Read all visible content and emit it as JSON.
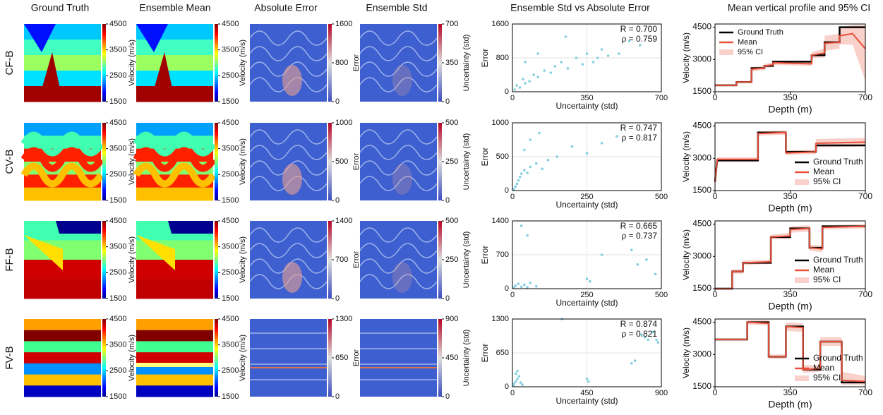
{
  "column_titles": [
    "Ground Truth",
    "Ensemble Mean",
    "Absolute Error",
    "Ensemble Std",
    "Ensemble Std vs Absolute Error",
    "Mean vertical profile and 95% CI"
  ],
  "row_labels": [
    "CF-B",
    "CV-B",
    "FF-B",
    "FV-B"
  ],
  "chart_data": [
    {
      "type": "heatmap",
      "colormap": "jet",
      "colorbar_label": "Velocity (m/s)",
      "clim": [
        1500,
        4500
      ],
      "cticks": [
        1500,
        2500,
        3500,
        4500
      ]
    },
    {
      "type": "heatmap",
      "colormap": "jet",
      "colorbar_label": "Velocity (m/s)",
      "clim": [
        1500,
        4500
      ],
      "cticks": [
        1500,
        2500,
        3500,
        4500
      ]
    },
    {
      "type": "heatmap",
      "colormap": "coolwarm",
      "colorbar_label": "Error",
      "clim": [
        0,
        1600
      ],
      "cticks": [
        0,
        800,
        1600
      ]
    },
    {
      "type": "heatmap",
      "colormap": "coolwarm",
      "colorbar_label": "Uncertainty (std)",
      "clim": [
        0,
        700
      ],
      "cticks": [
        0,
        350,
        700
      ]
    },
    {
      "type": "scatter",
      "xlabel": "Uncertainty (std)",
      "ylabel": "Error",
      "annotations": [
        "R = 0.700",
        "ρ = 0.759"
      ],
      "color": "#5bbfd6",
      "grid": true,
      "xlim": [
        0,
        700
      ],
      "xticks": [
        0,
        350,
        700
      ],
      "ylim": [
        0,
        1600
      ],
      "yticks": [
        0,
        800,
        1600
      ],
      "x": [
        10,
        20,
        35,
        50,
        60,
        80,
        100,
        120,
        150,
        180,
        200,
        230,
        260,
        300,
        330,
        350,
        380,
        400,
        420,
        450,
        500,
        550,
        600,
        250,
        120,
        60
      ],
      "values": [
        50,
        150,
        100,
        300,
        200,
        250,
        400,
        350,
        500,
        450,
        600,
        700,
        550,
        800,
        650,
        900,
        700,
        800,
        1000,
        850,
        900,
        1200,
        1100,
        1300,
        900,
        700
      ]
    },
    {
      "type": "line",
      "xlabel": "Depth (m)",
      "ylabel": "Velocity (m/s)",
      "legend": "upper left",
      "xlim": [
        0,
        700
      ],
      "xticks": [
        0,
        350,
        700
      ],
      "ylim": [
        1500,
        4650
      ],
      "yticks": [
        1500,
        3000,
        4500
      ],
      "x": [
        0,
        100,
        100,
        170,
        170,
        230,
        230,
        270,
        270,
        450,
        450,
        510,
        510,
        580,
        580,
        640,
        700
      ],
      "series": [
        {
          "name": "Ground Truth",
          "color": "#000000",
          "values": [
            1800,
            1800,
            1950,
            1950,
            2600,
            2600,
            2700,
            2700,
            2900,
            2900,
            3200,
            3200,
            3800,
            3800,
            4500,
            4500,
            4500
          ]
        },
        {
          "name": "Mean",
          "color": "#e8503a",
          "values": [
            1800,
            1800,
            1950,
            1950,
            2550,
            2600,
            2700,
            2750,
            2850,
            2800,
            3200,
            3300,
            3750,
            3800,
            4100,
            4200,
            3500
          ]
        }
      ],
      "band": {
        "name": "95% CI",
        "color": "#f6b3a6",
        "lower": [
          1750,
          1750,
          1900,
          1900,
          2450,
          2500,
          2600,
          2650,
          2750,
          2700,
          3050,
          3100,
          3400,
          3500,
          3700,
          3700,
          2000
        ],
        "upper": [
          1850,
          1850,
          2000,
          2000,
          2650,
          2700,
          2800,
          2850,
          2950,
          2950,
          3350,
          3500,
          4100,
          4200,
          4500,
          4600,
          4600
        ]
      }
    },
    {
      "type": "heatmap",
      "colormap": "jet",
      "colorbar_label": "Velocity (m/s)",
      "clim": [
        1500,
        4500
      ],
      "cticks": [
        1500,
        2500,
        3500,
        4500
      ]
    },
    {
      "type": "heatmap",
      "colormap": "jet",
      "colorbar_label": "Velocity (m/s)",
      "clim": [
        1500,
        4500
      ],
      "cticks": [
        1500,
        2500,
        3500,
        4500
      ]
    },
    {
      "type": "heatmap",
      "colormap": "coolwarm",
      "colorbar_label": "Error",
      "clim": [
        0,
        1000
      ],
      "cticks": [
        0,
        500,
        1000
      ]
    },
    {
      "type": "heatmap",
      "colormap": "coolwarm",
      "colorbar_label": "Uncertainty (std)",
      "clim": [
        0,
        500
      ],
      "cticks": [
        0,
        250,
        500
      ]
    },
    {
      "type": "scatter",
      "xlabel": "Uncertainty (std)",
      "ylabel": "Error",
      "annotations": [
        "R = 0.747",
        "ρ = 0.817"
      ],
      "color": "#5bbfd6",
      "grid": true,
      "xlim": [
        0,
        500
      ],
      "xticks": [
        0,
        250,
        500
      ],
      "ylim": [
        0,
        1000
      ],
      "yticks": [
        0,
        500,
        1000
      ],
      "x": [
        5,
        10,
        15,
        20,
        25,
        30,
        40,
        50,
        60,
        80,
        100,
        120,
        150,
        200,
        250,
        300,
        350,
        60,
        40,
        90
      ],
      "values": [
        20,
        60,
        100,
        150,
        200,
        250,
        300,
        260,
        350,
        400,
        320,
        450,
        500,
        650,
        550,
        700,
        800,
        750,
        600,
        850
      ]
    },
    {
      "type": "line",
      "xlabel": "Depth (m)",
      "ylabel": "Velocity (m/s)",
      "legend": "lower right",
      "xlim": [
        0,
        700
      ],
      "xticks": [
        0,
        350,
        700
      ],
      "ylim": [
        1500,
        4650
      ],
      "yticks": [
        1500,
        3000,
        4500
      ],
      "x": [
        0,
        10,
        10,
        200,
        200,
        330,
        330,
        470,
        470,
        700
      ],
      "series": [
        {
          "name": "Ground Truth",
          "color": "#000000",
          "values": [
            1900,
            2900,
            2900,
            2900,
            4200,
            4200,
            3300,
            3300,
            3600,
            3600
          ]
        },
        {
          "name": "Mean",
          "color": "#e8503a",
          "values": [
            1900,
            2900,
            2950,
            2950,
            4150,
            4200,
            3250,
            3300,
            3700,
            3750
          ]
        }
      ],
      "band": {
        "name": "95% CI",
        "color": "#f6b3a6",
        "lower": [
          1850,
          2800,
          2850,
          2850,
          4050,
          4100,
          3150,
          3200,
          3500,
          3550
        ],
        "upper": [
          1950,
          3000,
          3050,
          3050,
          4250,
          4300,
          3350,
          3400,
          3900,
          3950
        ]
      }
    },
    {
      "type": "heatmap",
      "colormap": "jet",
      "colorbar_label": "Velocity (m/s)",
      "clim": [
        1500,
        4500
      ],
      "cticks": [
        1500,
        2500,
        3500,
        4500
      ]
    },
    {
      "type": "heatmap",
      "colormap": "jet",
      "colorbar_label": "Velocity (m/s)",
      "clim": [
        1500,
        4500
      ],
      "cticks": [
        1500,
        2500,
        3500,
        4500
      ]
    },
    {
      "type": "heatmap",
      "colormap": "coolwarm",
      "colorbar_label": "Error",
      "clim": [
        0,
        1400
      ],
      "cticks": [
        0,
        700,
        1400
      ]
    },
    {
      "type": "heatmap",
      "colormap": "coolwarm",
      "colorbar_label": "Uncertainty (std)",
      "clim": [
        0,
        500
      ],
      "cticks": [
        0,
        250,
        500
      ]
    },
    {
      "type": "scatter",
      "xlabel": "Uncertainty (std)",
      "ylabel": "Error",
      "annotations": [
        "R = 0.665",
        "ρ = 0.737"
      ],
      "color": "#5bbfd6",
      "grid": true,
      "xlim": [
        0,
        500
      ],
      "xticks": [
        0,
        250,
        500
      ],
      "ylim": [
        0,
        1400
      ],
      "yticks": [
        0,
        700,
        1400
      ],
      "x": [
        5,
        10,
        20,
        30,
        40,
        50,
        60,
        80,
        30,
        50,
        250,
        260,
        400,
        420,
        450,
        480,
        300
      ],
      "values": [
        20,
        60,
        100,
        40,
        80,
        30,
        120,
        50,
        1300,
        1100,
        200,
        150,
        800,
        500,
        600,
        300,
        700
      ]
    },
    {
      "type": "line",
      "xlabel": "Depth (m)",
      "ylabel": "Velocity (m/s)",
      "legend": "lower right",
      "xlim": [
        0,
        700
      ],
      "xticks": [
        0,
        350,
        700
      ],
      "ylim": [
        1500,
        4650
      ],
      "yticks": [
        1500,
        3000,
        4500
      ],
      "x": [
        0,
        80,
        80,
        130,
        130,
        260,
        260,
        350,
        350,
        440,
        440,
        500,
        500,
        700
      ],
      "series": [
        {
          "name": "Ground Truth",
          "color": "#000000",
          "values": [
            1500,
            1500,
            2300,
            2300,
            2700,
            2700,
            3900,
            3900,
            4300,
            4300,
            3400,
            3400,
            4400,
            4400
          ]
        },
        {
          "name": "Mean",
          "color": "#e8503a",
          "values": [
            1500,
            1500,
            2300,
            2300,
            2700,
            2750,
            3900,
            3950,
            4250,
            4300,
            3400,
            3350,
            4350,
            4400
          ]
        }
      ],
      "band": {
        "name": "95% CI",
        "color": "#f6b3a6",
        "lower": [
          1450,
          1450,
          2200,
          2200,
          2600,
          2650,
          3800,
          3800,
          4100,
          4150,
          3250,
          3200,
          4250,
          4300
        ],
        "upper": [
          1550,
          1550,
          2400,
          2400,
          2800,
          2850,
          4000,
          4100,
          4400,
          4450,
          3550,
          3500,
          4450,
          4500
        ]
      }
    },
    {
      "type": "heatmap",
      "colormap": "jet",
      "colorbar_label": "Velocity (m/s)",
      "clim": [
        1500,
        4500
      ],
      "cticks": [
        1500,
        2500,
        3500,
        4500
      ]
    },
    {
      "type": "heatmap",
      "colormap": "jet",
      "colorbar_label": "Velocity (m/s)",
      "clim": [
        1500,
        4500
      ],
      "cticks": [
        1500,
        2500,
        3500,
        4500
      ]
    },
    {
      "type": "heatmap",
      "colormap": "coolwarm",
      "colorbar_label": "Error",
      "clim": [
        0,
        1300
      ],
      "cticks": [
        0,
        650,
        1300
      ]
    },
    {
      "type": "heatmap",
      "colormap": "coolwarm",
      "colorbar_label": "Uncertainty (std)",
      "clim": [
        0,
        900
      ],
      "cticks": [
        0,
        450,
        900
      ]
    },
    {
      "type": "scatter",
      "xlabel": "Uncertainty (std)",
      "ylabel": "Error",
      "annotations": [
        "R = 0.874",
        "ρ = 0.821"
      ],
      "color": "#5bbfd6",
      "grid": true,
      "xlim": [
        0,
        900
      ],
      "xticks": [
        0,
        450,
        900
      ],
      "ylim": [
        0,
        1300
      ],
      "yticks": [
        0,
        650,
        1300
      ],
      "x": [
        5,
        10,
        20,
        30,
        40,
        50,
        60,
        30,
        20,
        300,
        450,
        460,
        780,
        800,
        820,
        850,
        870,
        880,
        720,
        740
      ],
      "values": [
        20,
        60,
        100,
        150,
        200,
        80,
        40,
        300,
        250,
        1300,
        150,
        100,
        1000,
        950,
        900,
        1050,
        900,
        850,
        450,
        500
      ]
    },
    {
      "type": "line",
      "xlabel": "Depth (m)",
      "ylabel": "Velocity (m/s)",
      "legend": "lower right",
      "xlim": [
        0,
        700
      ],
      "xticks": [
        0,
        350,
        700
      ],
      "ylim": [
        1500,
        4650
      ],
      "yticks": [
        1500,
        3000,
        4500
      ],
      "x": [
        0,
        150,
        150,
        250,
        250,
        330,
        330,
        410,
        410,
        490,
        490,
        590,
        590,
        700
      ],
      "series": [
        {
          "name": "Ground Truth",
          "color": "#000000",
          "values": [
            3700,
            3700,
            4500,
            4500,
            2900,
            2900,
            4300,
            4300,
            2300,
            2300,
            3600,
            3600,
            1700,
            1700
          ]
        },
        {
          "name": "Mean",
          "color": "#e8503a",
          "values": [
            3700,
            3700,
            4500,
            4450,
            2900,
            2900,
            4300,
            4250,
            2300,
            2350,
            3600,
            3600,
            1800,
            1750
          ]
        }
      ],
      "band": {
        "name": "95% CI",
        "color": "#f6b3a6",
        "lower": [
          3650,
          3650,
          4400,
          4350,
          2800,
          2800,
          4100,
          4050,
          2150,
          2200,
          3400,
          3400,
          1600,
          1600
        ],
        "upper": [
          3750,
          3750,
          4600,
          4600,
          3000,
          3000,
          4500,
          4450,
          2500,
          2500,
          3800,
          3800,
          2200,
          2000
        ]
      }
    }
  ]
}
